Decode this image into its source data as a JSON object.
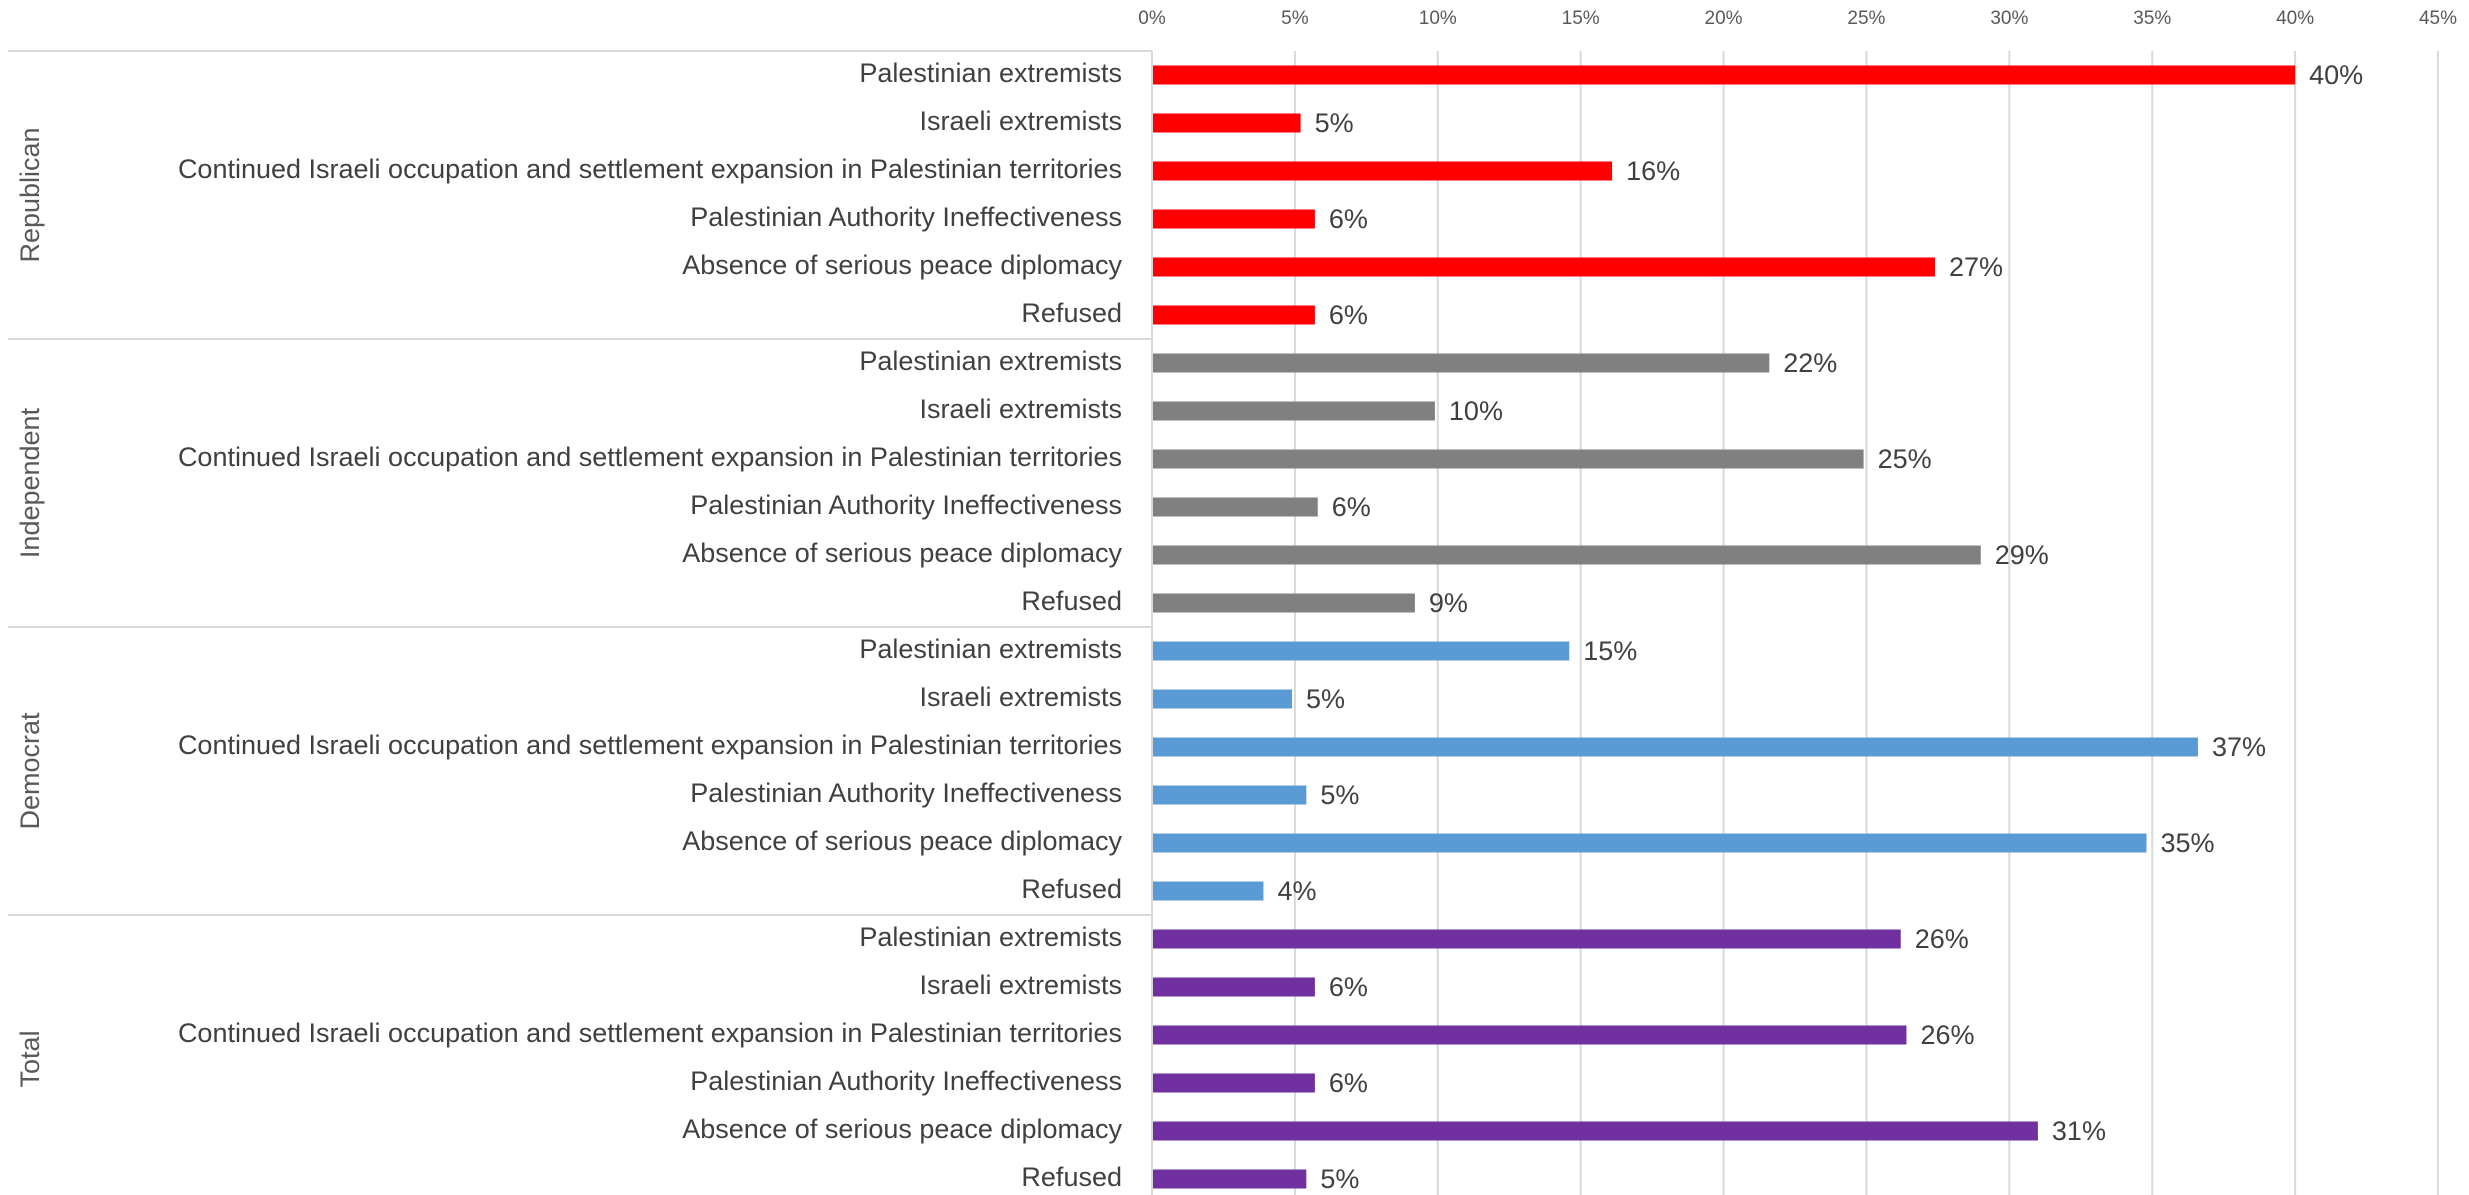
{
  "chart_data": {
    "type": "bar",
    "orientation": "horizontal",
    "categories": [
      "Palestinian extremists",
      "Israeli extremists",
      "Continued Israeli occupation and settlement expansion in Palestinian territories",
      "Palestinian Authority Ineffectiveness",
      "Absence of serious peace diplomacy",
      "Refused"
    ],
    "series": [
      {
        "name": "Republican",
        "color": "#ff0000",
        "values": [
          40.0,
          5.2,
          16.1,
          5.7,
          27.4,
          5.7
        ],
        "value_labels": [
          "40%",
          "5%",
          "16%",
          "6%",
          "27%",
          "6%"
        ]
      },
      {
        "name": "Independent",
        "color": "#808080",
        "values": [
          21.6,
          9.9,
          24.9,
          5.8,
          29.0,
          9.2
        ],
        "value_labels": [
          "22%",
          "10%",
          "25%",
          "6%",
          "29%",
          "9%"
        ]
      },
      {
        "name": "Democrat",
        "color": "#5b9bd5",
        "values": [
          14.6,
          4.9,
          36.6,
          5.4,
          34.8,
          3.9
        ],
        "value_labels": [
          "15%",
          "5%",
          "37%",
          "5%",
          "35%",
          "4%"
        ]
      },
      {
        "name": "Total",
        "color": "#7030a0",
        "values": [
          26.2,
          5.7,
          26.4,
          5.7,
          31.0,
          5.4
        ],
        "value_labels": [
          "26%",
          "6%",
          "26%",
          "6%",
          "31%",
          "5%"
        ]
      }
    ],
    "xlim": [
      0,
      45
    ],
    "xticks": [
      {
        "value": 0,
        "label": "0%"
      },
      {
        "value": 5,
        "label": "5%"
      },
      {
        "value": 10,
        "label": "10%"
      },
      {
        "value": 15,
        "label": "15%"
      },
      {
        "value": 20,
        "label": "20%"
      },
      {
        "value": 25,
        "label": "25%"
      },
      {
        "value": 30,
        "label": "30%"
      },
      {
        "value": 35,
        "label": "35%"
      },
      {
        "value": 40,
        "label": "40%"
      },
      {
        "value": 45,
        "label": "45%"
      }
    ],
    "grid": true
  }
}
